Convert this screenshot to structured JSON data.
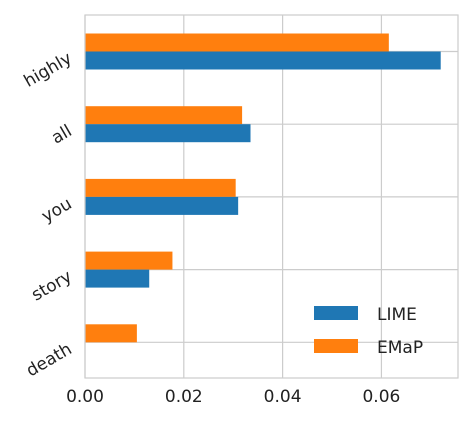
{
  "chart_data": {
    "type": "bar",
    "orientation": "horizontal",
    "categories": [
      "highly",
      "all",
      "you",
      "story",
      "death"
    ],
    "series": [
      {
        "name": "LIME",
        "color": "#1f77b4",
        "values": [
          0.072,
          0.0335,
          0.031,
          0.013,
          0.0
        ]
      },
      {
        "name": "EMaP",
        "color": "#ff7f0e",
        "values": [
          0.0615,
          0.0318,
          0.0305,
          0.0177,
          0.0105
        ]
      }
    ],
    "x_ticks": [
      "0.00",
      "0.02",
      "0.04",
      "0.06"
    ],
    "xlim": [
      0,
      0.0755
    ],
    "grid": true,
    "legend_position": "bottom-right",
    "title": "",
    "xlabel": "",
    "ylabel": ""
  }
}
